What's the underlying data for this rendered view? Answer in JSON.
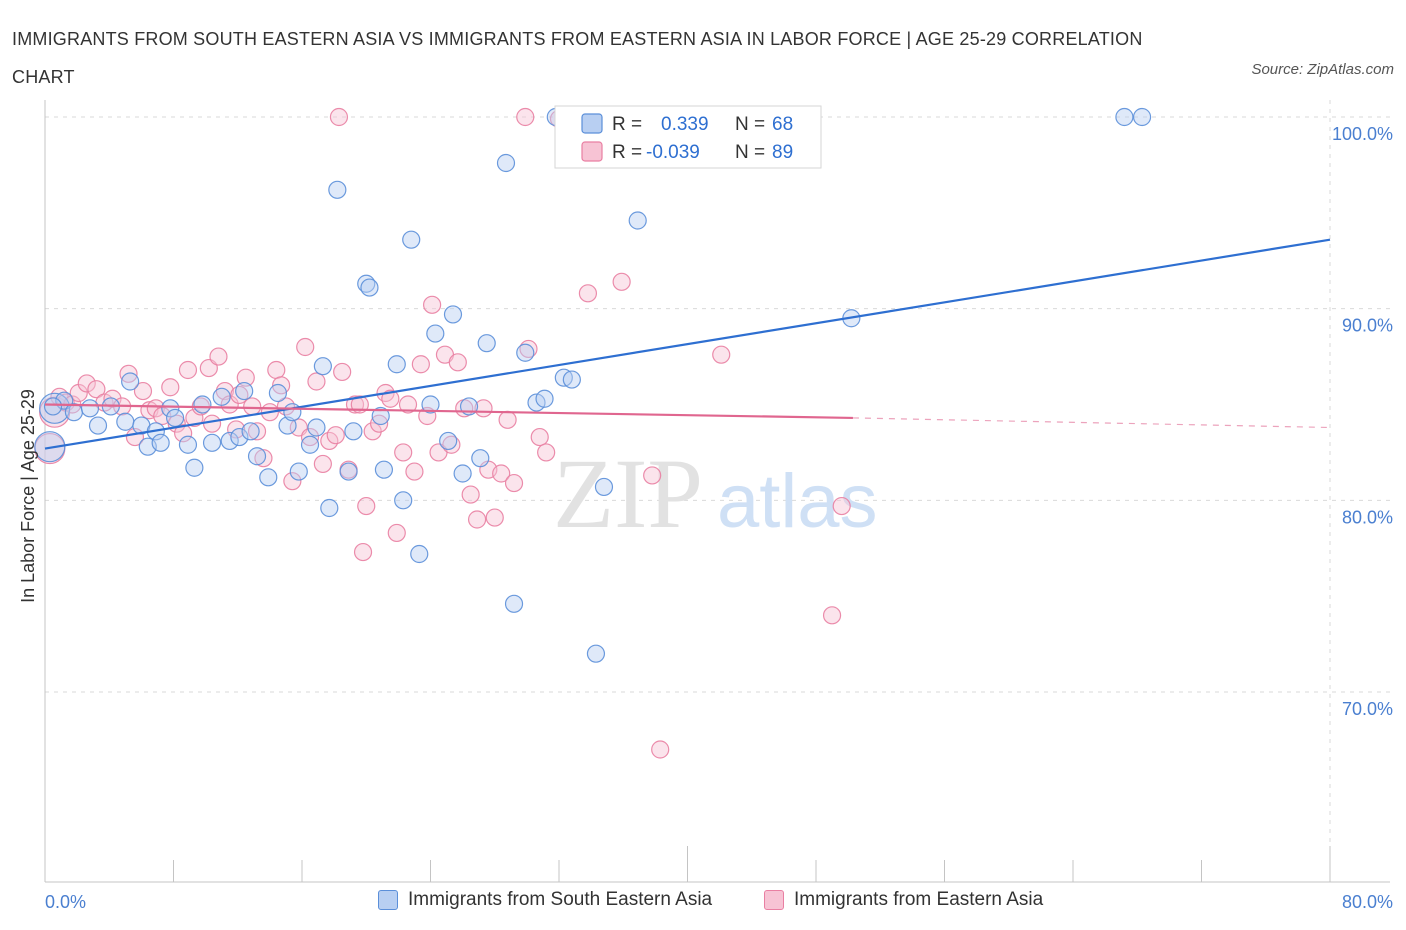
{
  "title": "IMMIGRANTS FROM SOUTH EASTERN ASIA VS IMMIGRANTS FROM EASTERN ASIA IN LABOR FORCE | AGE 25-29 CORRELATION CHART",
  "source": "Source: ZipAtlas.com",
  "watermark": {
    "zip": "ZIP",
    "atlas": "atlas"
  },
  "colors": {
    "blue": "#5b8fd9",
    "blue_fill": "#b8cff2",
    "blue_line": "#2e6fd1",
    "pink": "#e97fa2",
    "pink_fill": "#f7c3d4",
    "pink_line": "#e0668f",
    "axis_text": "#4a7fd0",
    "grid": "#d9d9d9"
  },
  "legend_box": {
    "rows": [
      {
        "r_label": "R =",
        "r_value": "0.339",
        "n_label": "N =",
        "n_value": "68"
      },
      {
        "r_label": "R =",
        "r_value": "-0.039",
        "n_label": "N =",
        "n_value": "89"
      }
    ]
  },
  "legend_bottom": [
    "Immigrants from South Eastern Asia",
    "Immigrants from Eastern Asia"
  ],
  "chart_data": {
    "type": "scatter",
    "ylabel": "In Labor Force | Age 25-29",
    "xlabel": "",
    "xlim": [
      0,
      80
    ],
    "ylim": [
      60,
      101.5
    ],
    "x_tick_labels": [
      "0.0%",
      "80.0%"
    ],
    "y_ticks": [
      70,
      80,
      90,
      100
    ],
    "y_tick_labels": [
      "70.0%",
      "80.0%",
      "90.0%",
      "100.0%"
    ],
    "grid": true,
    "series": [
      {
        "name": "Immigrants from South Eastern Asia",
        "color": "blue",
        "r": 0.339,
        "n": 68,
        "trend": {
          "x": [
            0,
            80
          ],
          "y": [
            82.7,
            93.6
          ]
        },
        "points": [
          [
            0.3,
            82.8
          ],
          [
            0.6,
            84.8
          ],
          [
            1.2,
            85.2
          ],
          [
            1.8,
            84.6
          ],
          [
            2.8,
            84.8
          ],
          [
            3.3,
            83.9
          ],
          [
            4.1,
            84.9
          ],
          [
            5.0,
            84.1
          ],
          [
            5.3,
            86.2
          ],
          [
            6.0,
            83.9
          ],
          [
            6.4,
            82.8
          ],
          [
            6.9,
            83.6
          ],
          [
            7.2,
            83.0
          ],
          [
            7.8,
            84.8
          ],
          [
            8.1,
            84.3
          ],
          [
            8.9,
            82.9
          ],
          [
            9.3,
            81.7
          ],
          [
            9.8,
            85.0
          ],
          [
            10.4,
            83.0
          ],
          [
            11.0,
            85.4
          ],
          [
            11.5,
            83.1
          ],
          [
            12.1,
            83.3
          ],
          [
            12.4,
            85.7
          ],
          [
            12.8,
            83.6
          ],
          [
            13.2,
            82.3
          ],
          [
            13.9,
            81.2
          ],
          [
            14.5,
            85.6
          ],
          [
            15.1,
            83.9
          ],
          [
            15.4,
            84.6
          ],
          [
            15.8,
            81.5
          ],
          [
            16.5,
            82.9
          ],
          [
            16.9,
            83.8
          ],
          [
            17.3,
            87.0
          ],
          [
            17.7,
            79.6
          ],
          [
            18.2,
            96.2
          ],
          [
            18.9,
            81.5
          ],
          [
            19.2,
            83.6
          ],
          [
            20.0,
            91.3
          ],
          [
            20.2,
            91.1
          ],
          [
            20.9,
            84.4
          ],
          [
            21.1,
            81.6
          ],
          [
            21.9,
            87.1
          ],
          [
            22.3,
            80.0
          ],
          [
            22.8,
            93.6
          ],
          [
            23.3,
            77.2
          ],
          [
            24.0,
            85.0
          ],
          [
            24.3,
            88.7
          ],
          [
            25.1,
            83.1
          ],
          [
            25.4,
            89.7
          ],
          [
            26.0,
            81.4
          ],
          [
            26.4,
            84.9
          ],
          [
            27.1,
            82.2
          ],
          [
            27.5,
            88.2
          ],
          [
            28.7,
            97.6
          ],
          [
            29.2,
            74.6
          ],
          [
            29.9,
            87.7
          ],
          [
            30.6,
            85.1
          ],
          [
            31.1,
            85.3
          ],
          [
            31.8,
            100.0
          ],
          [
            32.3,
            86.4
          ],
          [
            32.8,
            86.3
          ],
          [
            34.3,
            72.0
          ],
          [
            34.8,
            80.7
          ],
          [
            36.9,
            94.6
          ],
          [
            50.2,
            89.5
          ],
          [
            67.2,
            100.0
          ],
          [
            68.3,
            100.0
          ],
          [
            0.5,
            84.9
          ]
        ]
      },
      {
        "name": "Immigrants from Eastern Asia",
        "color": "pink",
        "r": -0.039,
        "n": 89,
        "trend_solid": {
          "x": [
            0,
            50.3
          ],
          "y": [
            85.0,
            84.3
          ]
        },
        "trend_dashed": {
          "x": [
            50.3,
            80
          ],
          "y": [
            84.3,
            83.8
          ]
        },
        "points": [
          [
            0.3,
            82.7
          ],
          [
            0.6,
            84.6
          ],
          [
            0.9,
            85.4
          ],
          [
            1.3,
            85.1
          ],
          [
            1.7,
            85.0
          ],
          [
            2.1,
            85.6
          ],
          [
            2.6,
            86.1
          ],
          [
            3.2,
            85.8
          ],
          [
            3.7,
            85.1
          ],
          [
            4.2,
            85.3
          ],
          [
            4.8,
            84.9
          ],
          [
            5.2,
            86.6
          ],
          [
            5.6,
            83.3
          ],
          [
            6.1,
            85.7
          ],
          [
            6.5,
            84.7
          ],
          [
            6.9,
            84.8
          ],
          [
            7.3,
            84.4
          ],
          [
            7.8,
            85.9
          ],
          [
            8.2,
            84.0
          ],
          [
            8.6,
            83.5
          ],
          [
            8.9,
            86.8
          ],
          [
            9.3,
            84.3
          ],
          [
            9.7,
            84.9
          ],
          [
            10.2,
            86.9
          ],
          [
            10.4,
            84.0
          ],
          [
            10.8,
            87.5
          ],
          [
            11.2,
            85.7
          ],
          [
            11.5,
            85.0
          ],
          [
            11.9,
            83.7
          ],
          [
            12.1,
            85.5
          ],
          [
            12.5,
            86.4
          ],
          [
            12.9,
            84.9
          ],
          [
            13.2,
            83.6
          ],
          [
            13.6,
            82.2
          ],
          [
            14.0,
            84.6
          ],
          [
            14.4,
            86.8
          ],
          [
            14.7,
            86.0
          ],
          [
            15.0,
            84.9
          ],
          [
            15.4,
            81.0
          ],
          [
            15.8,
            83.8
          ],
          [
            16.2,
            88.0
          ],
          [
            16.5,
            83.3
          ],
          [
            16.9,
            86.2
          ],
          [
            17.3,
            81.9
          ],
          [
            17.7,
            83.1
          ],
          [
            18.1,
            83.4
          ],
          [
            18.5,
            86.7
          ],
          [
            18.9,
            81.6
          ],
          [
            19.3,
            85.0
          ],
          [
            19.6,
            85.0
          ],
          [
            20.0,
            79.7
          ],
          [
            20.4,
            83.6
          ],
          [
            20.8,
            84.0
          ],
          [
            21.2,
            85.6
          ],
          [
            21.5,
            85.3
          ],
          [
            21.9,
            78.3
          ],
          [
            22.3,
            82.5
          ],
          [
            22.6,
            85.0
          ],
          [
            23.0,
            81.5
          ],
          [
            23.4,
            87.1
          ],
          [
            23.8,
            84.4
          ],
          [
            24.1,
            90.2
          ],
          [
            24.5,
            82.5
          ],
          [
            24.9,
            87.6
          ],
          [
            25.3,
            82.9
          ],
          [
            25.7,
            87.2
          ],
          [
            26.1,
            84.8
          ],
          [
            26.5,
            80.3
          ],
          [
            26.9,
            79.0
          ],
          [
            27.3,
            84.8
          ],
          [
            27.6,
            81.6
          ],
          [
            28.0,
            79.1
          ],
          [
            28.4,
            81.4
          ],
          [
            28.8,
            84.2
          ],
          [
            29.2,
            80.9
          ],
          [
            29.9,
            100.0
          ],
          [
            30.1,
            87.9
          ],
          [
            30.8,
            83.3
          ],
          [
            31.2,
            82.5
          ],
          [
            32.0,
            99.9
          ],
          [
            33.8,
            90.8
          ],
          [
            35.9,
            91.4
          ],
          [
            37.8,
            81.3
          ],
          [
            38.3,
            67.0
          ],
          [
            42.1,
            87.6
          ],
          [
            49.0,
            74.0
          ],
          [
            49.6,
            79.7
          ],
          [
            18.3,
            100.0
          ],
          [
            19.8,
            77.3
          ]
        ]
      }
    ]
  }
}
